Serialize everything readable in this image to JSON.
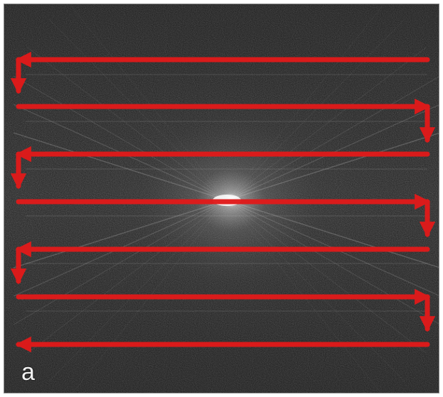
{
  "figure": {
    "panel_label": "a",
    "background_color": "#1f1f1f",
    "path_color": "#e11a1a",
    "spectrum_center_color": "#f4f4f4"
  },
  "scan_path": {
    "type": "raster-serpentine",
    "horizontal_sweeps": 7,
    "start_direction": "right-to-left",
    "start_corner": "top-right",
    "ending_direction": "right-to-left"
  }
}
